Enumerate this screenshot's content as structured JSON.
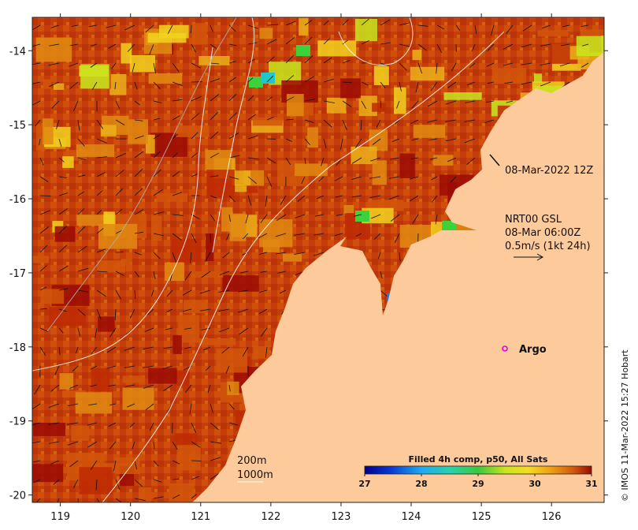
{
  "map": {
    "lon_range": [
      118.6,
      126.75
    ],
    "lat_range": [
      -20.1,
      -13.55
    ],
    "x_ticks": [
      "119",
      "120",
      "121",
      "122",
      "123",
      "124",
      "125",
      "126"
    ],
    "y_ticks": [
      "-14",
      "-15",
      "-16",
      "-17",
      "-18",
      "-19",
      "-20"
    ],
    "land_color": "#FDCB9B",
    "sst_colors": [
      "#9B0A05",
      "#BE2A04",
      "#D2560A",
      "#E08A12",
      "#ECB01A",
      "#F2D21E",
      "#C8E61E",
      "#3CD23C",
      "#1EC8C8",
      "#1E78E6"
    ]
  },
  "annotations": {
    "date_label": "08-Mar-2022 12Z",
    "current_source": "NRT00 GSL",
    "current_time": "08-Mar 06:00Z",
    "scale_label": "0.5m/s (1kt 24h)",
    "argo_label": "Argo",
    "isobath_200": "200m",
    "isobath_1000": "1000m"
  },
  "colorbar": {
    "title": "Filled 4h comp, p50, All Sats",
    "ticks": [
      "27",
      "28",
      "29",
      "30",
      "31"
    ],
    "range": [
      27,
      31
    ]
  },
  "credit": "© IMOS 11-Mar-2022 15:27 Hobart",
  "icons": {
    "argo": "argo-float-marker"
  }
}
